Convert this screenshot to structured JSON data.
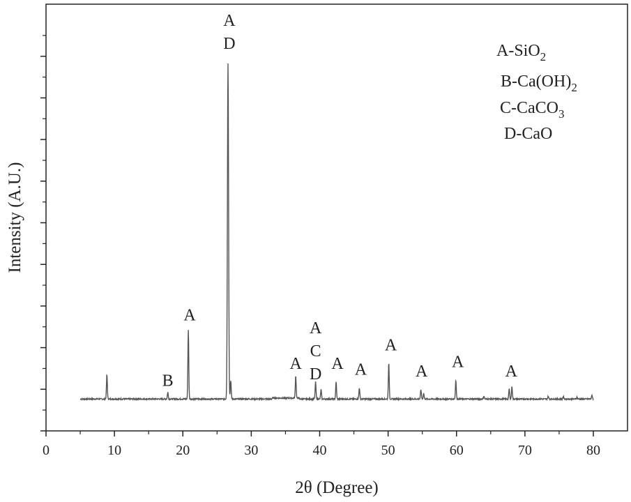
{
  "chart_data": {
    "type": "line",
    "title": "",
    "xlabel": "2θ (Degree)",
    "ylabel": "Intensity (A.U.)",
    "xlim": [
      0,
      85
    ],
    "ylim": [
      0,
      100
    ],
    "x_ticks": [
      0,
      10,
      20,
      30,
      40,
      50,
      60,
      70,
      80
    ],
    "y_ticks_labeled": false,
    "grid": false,
    "series": [
      {
        "baseline": 8.5,
        "range": [
          5,
          80
        ],
        "peaks": [
          {
            "x": 8.9,
            "y": 15.0
          },
          {
            "x": 17.8,
            "y": 10.3
          },
          {
            "x": 20.8,
            "y": 27.0
          },
          {
            "x": 26.6,
            "y": 98.0
          },
          {
            "x": 27.0,
            "y": 13.5
          },
          {
            "x": 36.5,
            "y": 14.5
          },
          {
            "x": 39.4,
            "y": 13.0
          },
          {
            "x": 40.2,
            "y": 11.0
          },
          {
            "x": 42.4,
            "y": 13.0
          },
          {
            "x": 45.8,
            "y": 11.5
          },
          {
            "x": 50.1,
            "y": 18.0
          },
          {
            "x": 54.8,
            "y": 11.0
          },
          {
            "x": 55.2,
            "y": 10.0
          },
          {
            "x": 59.9,
            "y": 13.5
          },
          {
            "x": 64.0,
            "y": 9.3
          },
          {
            "x": 67.7,
            "y": 11.2
          },
          {
            "x": 68.1,
            "y": 11.8
          },
          {
            "x": 73.4,
            "y": 9.2
          },
          {
            "x": 75.6,
            "y": 9.2
          },
          {
            "x": 77.6,
            "y": 9.0
          },
          {
            "x": 79.8,
            "y": 9.5
          }
        ]
      }
    ],
    "annotations": [
      {
        "x": 17.8,
        "y": 12.0,
        "lines": [
          "B"
        ]
      },
      {
        "x": 21.0,
        "y": 29.5,
        "lines": [
          "A"
        ]
      },
      {
        "x": 26.8,
        "y": 108.0,
        "lines": [
          "A",
          "D"
        ]
      },
      {
        "x": 36.5,
        "y": 16.5,
        "lines": [
          "A"
        ]
      },
      {
        "x": 39.4,
        "y": 26.0,
        "lines": [
          "A",
          "C",
          "D"
        ]
      },
      {
        "x": 42.6,
        "y": 16.5,
        "lines": [
          "A"
        ]
      },
      {
        "x": 46.0,
        "y": 15.0,
        "lines": [
          "A"
        ]
      },
      {
        "x": 50.4,
        "y": 21.5,
        "lines": [
          "A"
        ]
      },
      {
        "x": 54.9,
        "y": 14.5,
        "lines": [
          "A"
        ]
      },
      {
        "x": 60.2,
        "y": 17.0,
        "lines": [
          "A"
        ]
      },
      {
        "x": 68.0,
        "y": 14.5,
        "lines": [
          "A"
        ]
      }
    ],
    "legend": {
      "position": "top-right",
      "entries": [
        {
          "prefix": "A-SiO",
          "sub": "2"
        },
        {
          "prefix": "B-Ca(OH)",
          "sub": "2"
        },
        {
          "prefix": "C-CaCO",
          "sub": "3"
        },
        {
          "prefix": "D-CaO",
          "sub": ""
        }
      ]
    }
  }
}
